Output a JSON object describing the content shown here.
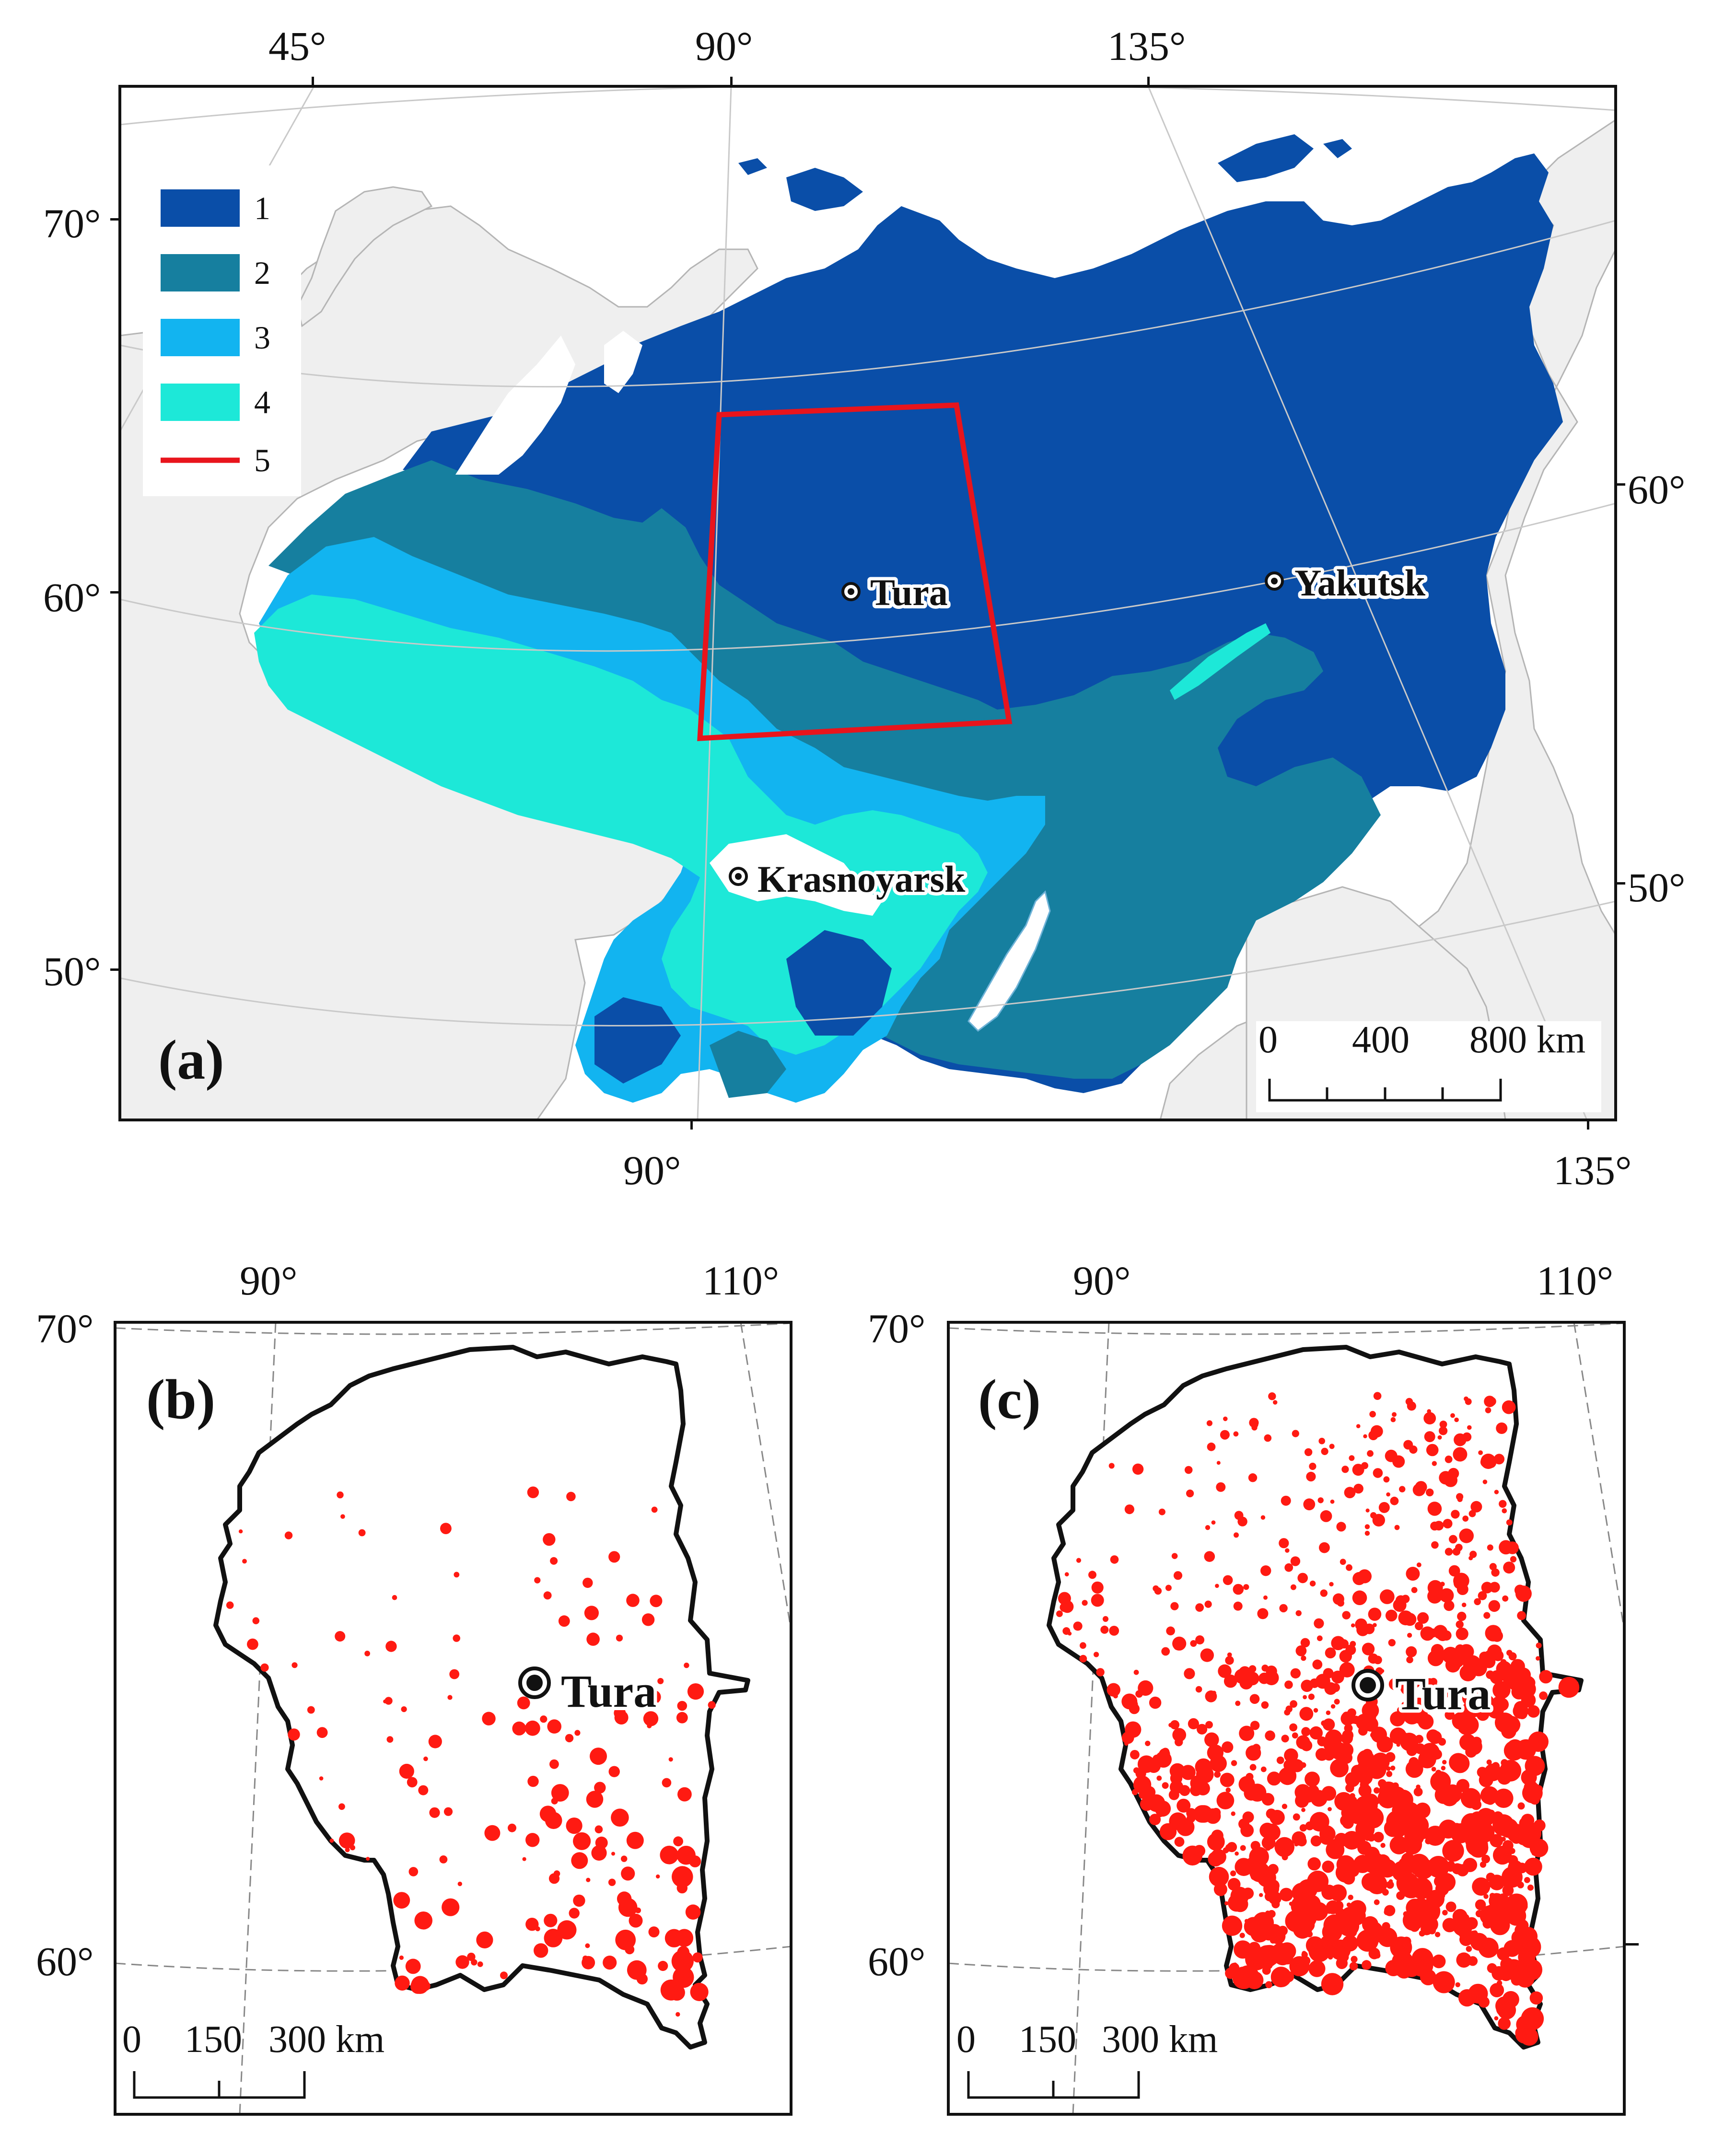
{
  "colors": {
    "class1": "#0a4ea8",
    "class2": "#167f9f",
    "class3": "#12b4f0",
    "class4": "#1de8d8",
    "class5": "#e8141c",
    "land": "#efefef",
    "fire": "#ff1a12"
  },
  "panel_a": {
    "label": "(a)",
    "lon_top": [
      "45°",
      "90°",
      "135°"
    ],
    "lon_bottom": [
      "90°",
      "135°"
    ],
    "lat_left": [
      "70°",
      "60°",
      "50°"
    ],
    "lat_right": [
      "60°",
      "50°"
    ],
    "legend": [
      {
        "num": "1"
      },
      {
        "num": "2"
      },
      {
        "num": "3"
      },
      {
        "num": "4"
      },
      {
        "num": "5"
      }
    ],
    "cities": [
      {
        "name": "Tura"
      },
      {
        "name": "Yakutsk"
      },
      {
        "name": "Krasnoyarsk"
      }
    ],
    "scale": [
      "0",
      "400",
      "800 km"
    ]
  },
  "panel_b": {
    "label": "(b)",
    "lon_top": [
      "90°",
      "110°"
    ],
    "lat_left": [
      "70°",
      "60°"
    ],
    "city": "Tura",
    "scale": [
      "0",
      "150",
      "300 km"
    ]
  },
  "panel_c": {
    "label": "(c)",
    "lon_top": [
      "90°",
      "110°"
    ],
    "lat_left": [
      "70°",
      "60°"
    ],
    "city": "Tura",
    "scale": [
      "0",
      "150",
      "300 km"
    ]
  }
}
